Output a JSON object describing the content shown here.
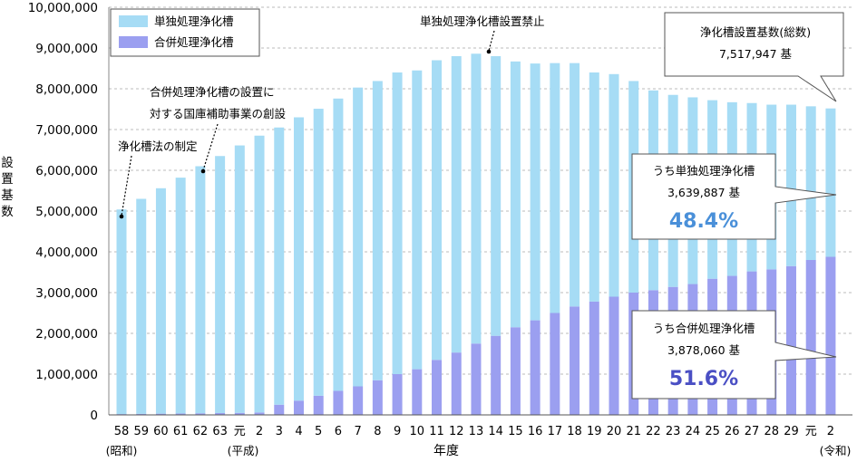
{
  "chart_data": {
    "type": "bar",
    "stacked": true,
    "ylabel": "設置基数",
    "xlabel": "年度",
    "ylim": [
      0,
      10000000
    ],
    "y_ticks": [
      "0",
      "1,000,000",
      "2,000,000",
      "3,000,000",
      "4,000,000",
      "5,000,000",
      "6,000,000",
      "7,000,000",
      "8,000,000",
      "9,000,000",
      "10,000,000"
    ],
    "categories": [
      "58",
      "59",
      "60",
      "61",
      "62",
      "63",
      "元",
      "2",
      "3",
      "4",
      "5",
      "6",
      "7",
      "8",
      "9",
      "10",
      "11",
      "12",
      "13",
      "14",
      "15",
      "16",
      "17",
      "18",
      "19",
      "20",
      "21",
      "22",
      "23",
      "24",
      "25",
      "26",
      "27",
      "28",
      "29",
      "元",
      "2"
    ],
    "era_labels": {
      "showa": "(昭和)",
      "heisei": "(平成)",
      "reiwa": "(令和)"
    },
    "series": [
      {
        "name": "合併処理浄化槽",
        "color": "#9b9ff0",
        "values": [
          20000,
          25000,
          30000,
          35000,
          40000,
          45000,
          50000,
          60000,
          250000,
          350000,
          470000,
          590000,
          700000,
          850000,
          1000000,
          1120000,
          1350000,
          1530000,
          1750000,
          1940000,
          2150000,
          2320000,
          2500000,
          2660000,
          2780000,
          2900000,
          3000000,
          3060000,
          3140000,
          3210000,
          3340000,
          3410000,
          3520000,
          3570000,
          3650000,
          3800000,
          3878060
        ]
      },
      {
        "name": "単独処理浄化槽",
        "color": "#a6dcf5",
        "values": [
          5020000,
          5275000,
          5530000,
          5785000,
          6060000,
          6305000,
          6560000,
          6790000,
          6800000,
          6950000,
          7040000,
          7170000,
          7330000,
          7340000,
          7400000,
          7330000,
          7350000,
          7270000,
          7110000,
          6860000,
          6520000,
          6300000,
          6130000,
          5970000,
          5620000,
          5460000,
          5190000,
          4900000,
          4710000,
          4580000,
          4380000,
          4260000,
          4130000,
          4040000,
          3960000,
          3770000,
          3639887
        ]
      }
    ],
    "legend": [
      "単独処理浄化槽",
      "合併処理浄化槽"
    ],
    "legend_position": "top-left",
    "annotations": {
      "act": "浄化槽法の制定",
      "subsidy_line1": "合併処理浄化槽の設置に",
      "subsidy_line2": "対する国庫補助事業の創設",
      "ban": "単独処理浄化槽設置禁止"
    },
    "callouts": {
      "total_title": "浄化槽設置基数(総数)",
      "total_value": "7,517,947 基",
      "single_title": "うち単独処理浄化槽",
      "single_value": "3,639,887 基",
      "single_pct": "48.4%",
      "combined_title": "うち合併処理浄化槽",
      "combined_value": "3,878,060 基",
      "combined_pct": "51.6%"
    }
  }
}
